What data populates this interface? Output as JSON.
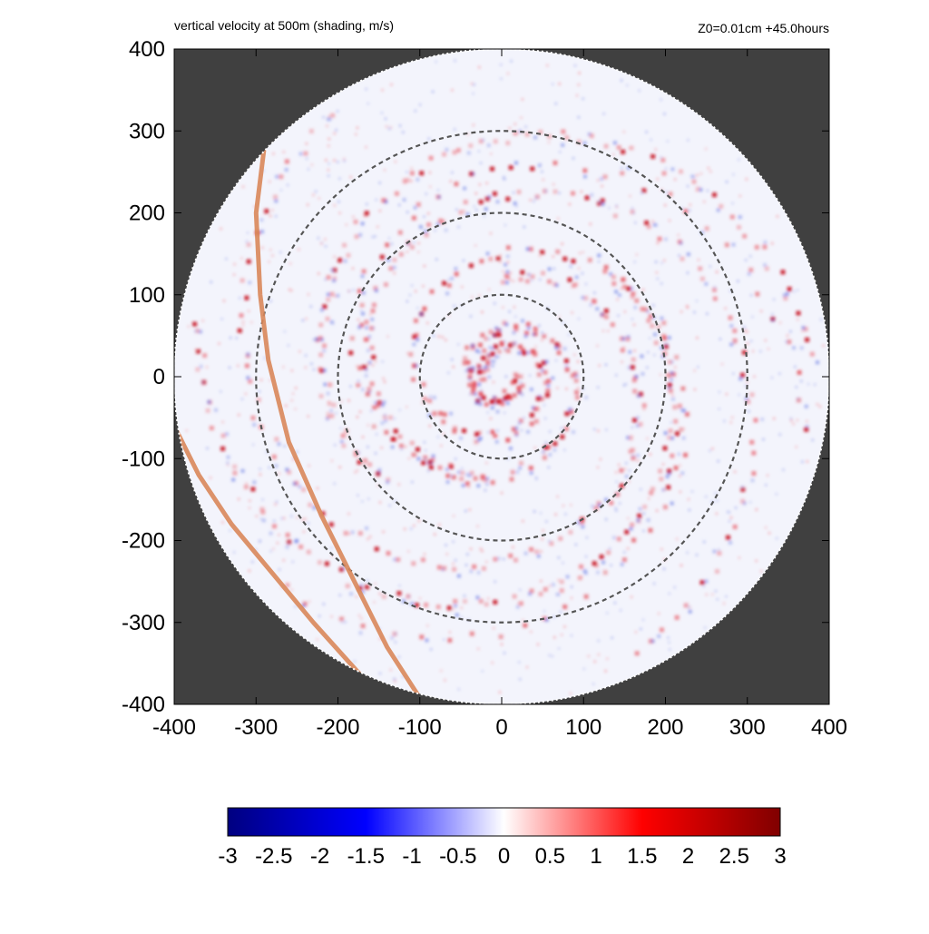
{
  "chart_data": {
    "type": "heatmap",
    "title": "vertical velocity at 500m (shading, m/s)",
    "subtitle": "Z0=0.01cm  +45.0hours",
    "xlim": [
      -400,
      400
    ],
    "ylim": [
      -400,
      400
    ],
    "x_ticks": [
      "-400",
      "-300",
      "-200",
      "-100",
      "0",
      "100",
      "200",
      "300",
      "400"
    ],
    "y_ticks": [
      "400",
      "300",
      "200",
      "100",
      "0",
      "-100",
      "-200",
      "-300",
      "-400"
    ],
    "x_tick_values": [
      -400,
      -300,
      -200,
      -100,
      0,
      100,
      200,
      300,
      400
    ],
    "y_tick_values": [
      400,
      300,
      200,
      100,
      0,
      -100,
      -200,
      -300,
      -400
    ],
    "domain_radius": 400,
    "reference_circles_radius": [
      100,
      200,
      300
    ],
    "colorbar": {
      "min": -3,
      "max": 3,
      "ticks": [
        "-3",
        "-2.5",
        "-2",
        "-1.5",
        "-1",
        "-0.5",
        "0",
        "0.5",
        "1",
        "1.5",
        "2",
        "2.5",
        "3"
      ],
      "tick_values": [
        -3,
        -2.5,
        -2,
        -1.5,
        -1,
        -0.5,
        0,
        0.5,
        1,
        1.5,
        2,
        2.5,
        3
      ],
      "colors": [
        "#000080",
        "#0000ff",
        "#ffffff",
        "#ff0000",
        "#800000"
      ]
    },
    "coastlines": [
      [
        [
          -290,
          280
        ],
        [
          -300,
          200
        ],
        [
          -295,
          100
        ],
        [
          -285,
          20
        ],
        [
          -260,
          -80
        ],
        [
          -220,
          -170
        ],
        [
          -180,
          -250
        ],
        [
          -140,
          -330
        ],
        [
          -95,
          -400
        ]
      ],
      [
        [
          -400,
          -60
        ],
        [
          -370,
          -120
        ],
        [
          -330,
          -180
        ],
        [
          -280,
          -240
        ],
        [
          -230,
          -300
        ],
        [
          -185,
          -350
        ],
        [
          -140,
          -400
        ]
      ]
    ],
    "colors": {
      "background_outside_domain": "#404040",
      "domain_fill": "#f3f4fc",
      "coastline": "#d9875a",
      "reference_circle": "#555555"
    }
  }
}
